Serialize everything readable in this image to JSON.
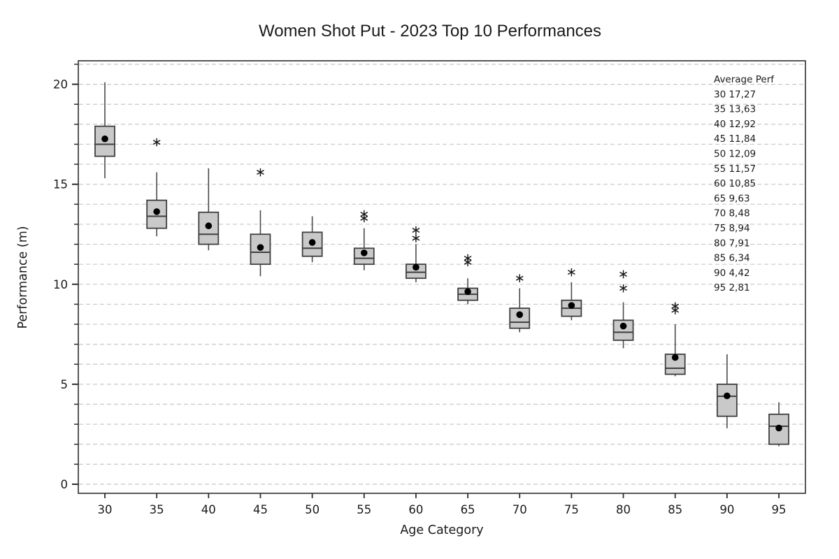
{
  "chart_data": {
    "type": "boxplot",
    "title": "Women Shot Put - 2023 Top 10 Performances",
    "xlabel": "Age Category",
    "ylabel": "Performance (m)",
    "categories": [
      "30",
      "35",
      "40",
      "45",
      "50",
      "55",
      "60",
      "65",
      "70",
      "75",
      "80",
      "85",
      "90",
      "95"
    ],
    "ylim": [
      -0.5,
      21.2
    ],
    "ytick_major": [
      0,
      5,
      10,
      15,
      20
    ],
    "ytick_minor_step": 1,
    "grid": "horizontal, dashed, every 1 m from 0 to 21",
    "legend_position": "none",
    "series": [
      {
        "category": "30",
        "low": 15.3,
        "q1": 16.4,
        "median": 17.0,
        "q3": 17.9,
        "high": 20.1,
        "mean": 17.27,
        "outliers": []
      },
      {
        "category": "35",
        "low": 12.4,
        "q1": 12.8,
        "median": 13.4,
        "q3": 14.2,
        "high": 15.6,
        "mean": 13.63,
        "outliers": [
          17.1
        ]
      },
      {
        "category": "40",
        "low": 11.7,
        "q1": 12.0,
        "median": 12.5,
        "q3": 13.6,
        "high": 15.8,
        "mean": 12.92,
        "outliers": []
      },
      {
        "category": "45",
        "low": 10.4,
        "q1": 11.0,
        "median": 11.6,
        "q3": 12.5,
        "high": 13.7,
        "mean": 11.84,
        "outliers": [
          15.6
        ]
      },
      {
        "category": "50",
        "low": 11.1,
        "q1": 11.4,
        "median": 11.8,
        "q3": 12.6,
        "high": 13.4,
        "mean": 12.09,
        "outliers": []
      },
      {
        "category": "55",
        "low": 10.7,
        "q1": 11.0,
        "median": 11.3,
        "q3": 11.8,
        "high": 12.8,
        "mean": 11.57,
        "outliers": [
          13.5,
          13.3
        ]
      },
      {
        "category": "60",
        "low": 10.1,
        "q1": 10.3,
        "median": 10.6,
        "q3": 11.0,
        "high": 12.0,
        "mean": 10.85,
        "outliers": [
          12.7,
          12.3
        ]
      },
      {
        "category": "65",
        "low": 9.0,
        "q1": 9.2,
        "median": 9.5,
        "q3": 9.8,
        "high": 10.3,
        "mean": 9.63,
        "outliers": [
          11.3,
          11.1
        ]
      },
      {
        "category": "70",
        "low": 7.6,
        "q1": 7.8,
        "median": 8.1,
        "q3": 8.8,
        "high": 9.8,
        "mean": 8.48,
        "outliers": [
          10.3
        ]
      },
      {
        "category": "75",
        "low": 8.2,
        "q1": 8.4,
        "median": 8.8,
        "q3": 9.2,
        "high": 10.1,
        "mean": 8.94,
        "outliers": [
          10.6
        ]
      },
      {
        "category": "80",
        "low": 6.8,
        "q1": 7.2,
        "median": 7.6,
        "q3": 8.2,
        "high": 9.1,
        "mean": 7.91,
        "outliers": [
          10.5,
          9.8
        ]
      },
      {
        "category": "85",
        "low": 5.4,
        "q1": 5.5,
        "median": 5.8,
        "q3": 6.5,
        "high": 8.0,
        "mean": 6.34,
        "outliers": [
          8.9,
          8.7
        ]
      },
      {
        "category": "90",
        "low": 2.8,
        "q1": 3.4,
        "median": 4.4,
        "q3": 5.0,
        "high": 6.5,
        "mean": 4.42,
        "outliers": []
      },
      {
        "category": "95",
        "low": 1.9,
        "q1": 2.0,
        "median": 2.9,
        "q3": 3.5,
        "high": 4.1,
        "mean": 2.81,
        "outliers": []
      }
    ],
    "annotation": {
      "title": "Average Perf",
      "lines": [
        "30 17,27",
        "35 13,63",
        "40 12,92",
        "45 11,84",
        "50 12,09",
        "55 11,57",
        "60 10,85",
        "65 9,63",
        "70 8,48",
        "75 8,94",
        "80 7,91",
        "85 6,34",
        "90 4,42",
        "95 2,81"
      ]
    },
    "colors": {
      "box_fill": "#c9c9c9",
      "box_stroke": "#3f3f3f",
      "whisker": "#4a4a4a",
      "median": "#3f3f3f",
      "mean_dot": "#000000",
      "outlier": "#1a1a1a",
      "grid": "#c8c8c8",
      "axis": "#2e2e2e",
      "text": "#1a1a1a"
    }
  }
}
